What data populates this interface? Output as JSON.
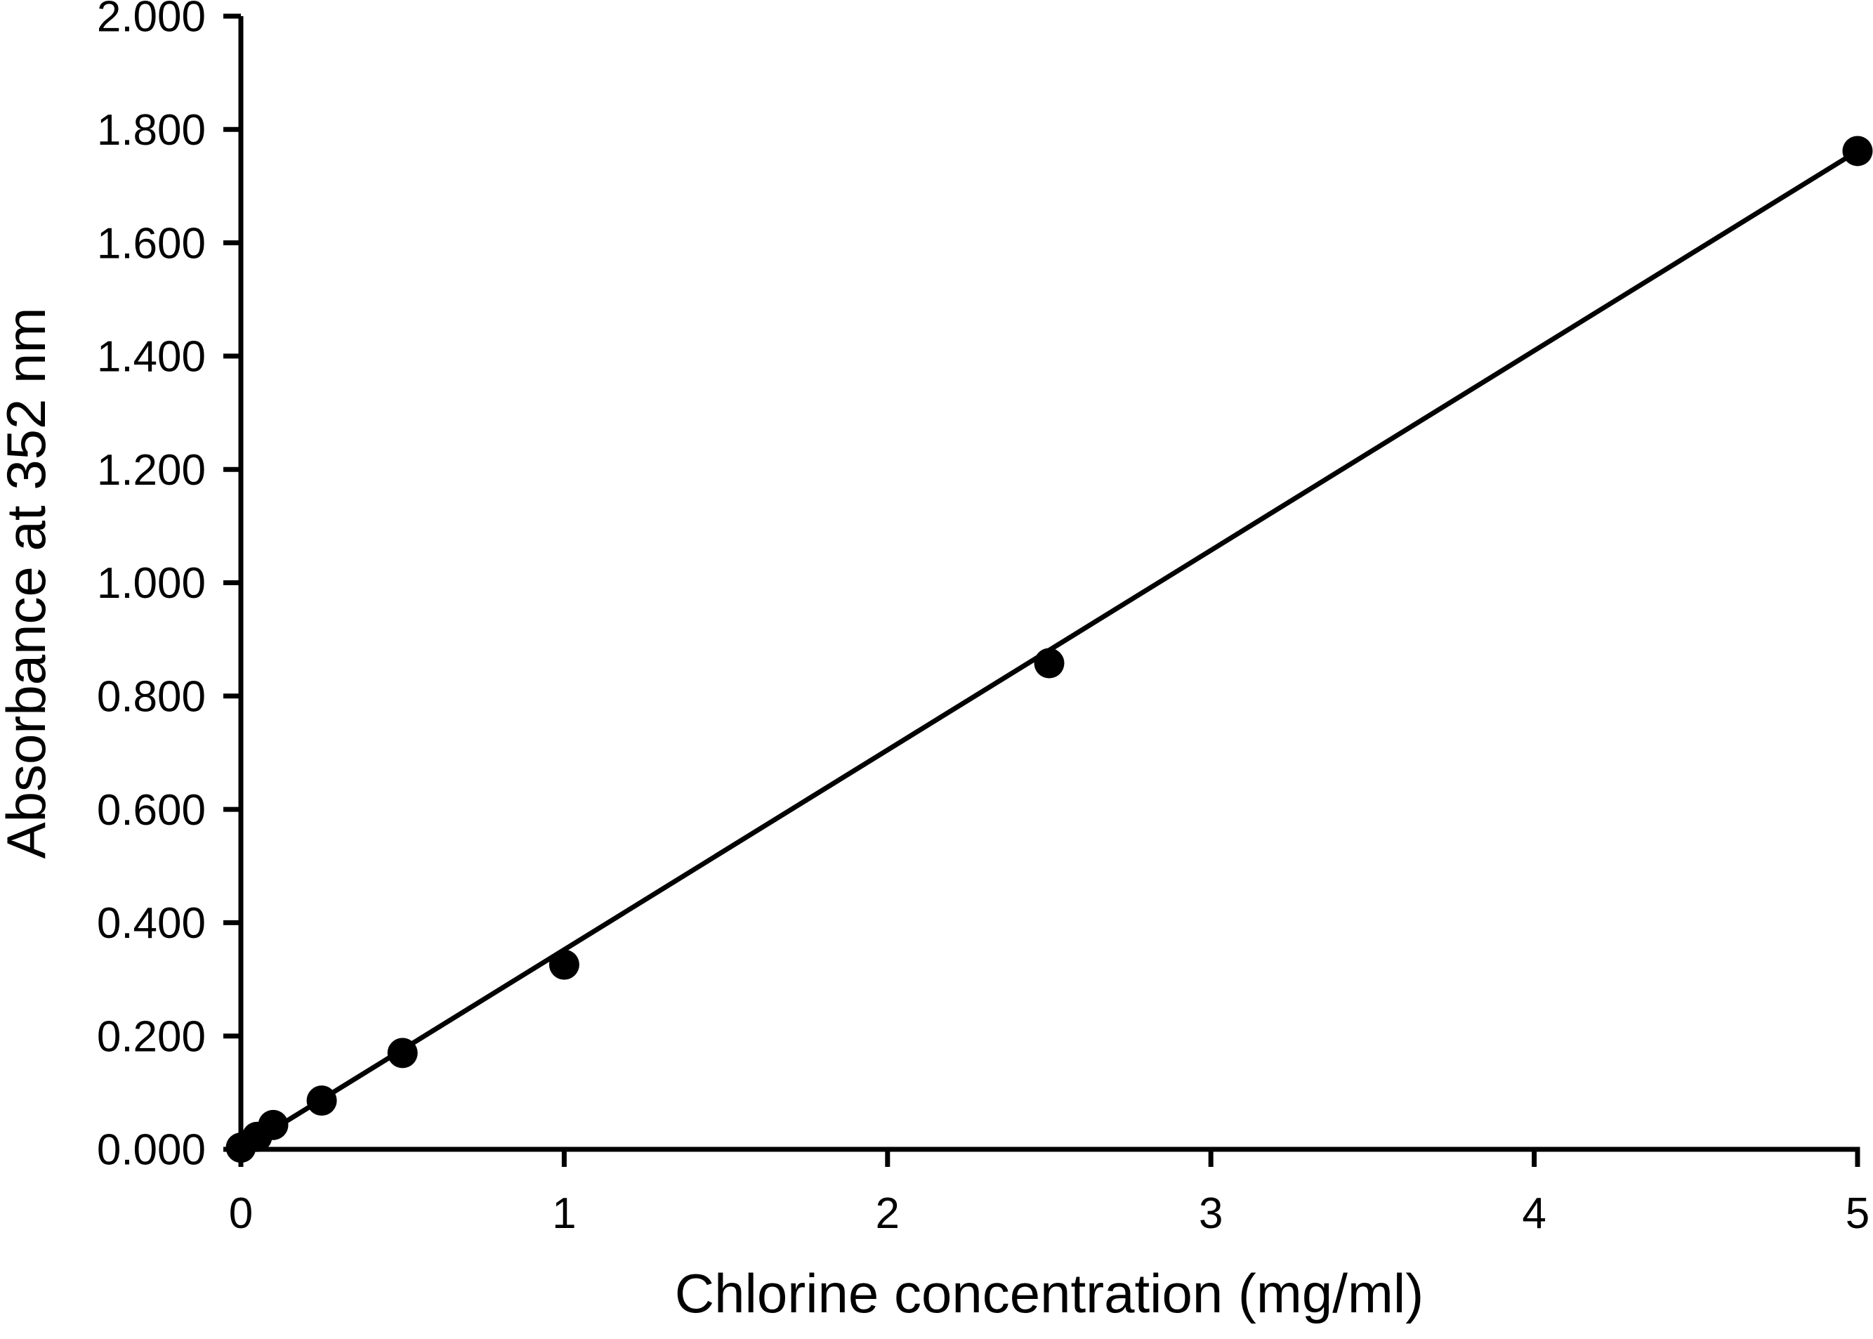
{
  "chart_data": {
    "type": "scatter",
    "title": "",
    "xlabel": "Chlorine concentration (mg/ml)",
    "ylabel": "Absorbance at 352 nm",
    "xlim": [
      0,
      5
    ],
    "ylim": [
      0,
      2
    ],
    "grid": false,
    "legend": "none",
    "background_color": "#ffffff",
    "foreground_color": "#000000",
    "x_ticks": [
      {
        "value": 0,
        "label": "0"
      },
      {
        "value": 1,
        "label": "1"
      },
      {
        "value": 2,
        "label": "2"
      },
      {
        "value": 3,
        "label": "3"
      },
      {
        "value": 4,
        "label": "4"
      },
      {
        "value": 5,
        "label": "5"
      }
    ],
    "y_ticks": [
      {
        "value": 0.0,
        "label": "0.000"
      },
      {
        "value": 0.2,
        "label": "0.200"
      },
      {
        "value": 0.4,
        "label": "0.400"
      },
      {
        "value": 0.6,
        "label": "0.600"
      },
      {
        "value": 0.8,
        "label": "0.800"
      },
      {
        "value": 1.0,
        "label": "1.000"
      },
      {
        "value": 1.2,
        "label": "1.200"
      },
      {
        "value": 1.4,
        "label": "1.400"
      },
      {
        "value": 1.6,
        "label": "1.600"
      },
      {
        "value": 1.8,
        "label": "1.800"
      },
      {
        "value": 2.0,
        "label": "2.000"
      }
    ],
    "series": [
      {
        "name": "absorbance-vs-chlorine-concentration",
        "marker": "filled-circle",
        "color": "#000000",
        "points": [
          {
            "x": 0.0,
            "y": 0.003
          },
          {
            "x": 0.05,
            "y": 0.022
          },
          {
            "x": 0.1,
            "y": 0.043
          },
          {
            "x": 0.25,
            "y": 0.086
          },
          {
            "x": 0.5,
            "y": 0.17
          },
          {
            "x": 1.0,
            "y": 0.326
          },
          {
            "x": 2.5,
            "y": 0.858
          },
          {
            "x": 5.0,
            "y": 1.762
          }
        ],
        "trendline": {
          "x1": 0,
          "y1": 0.0,
          "x2": 5,
          "y2": 1.762,
          "slope": 0.3524,
          "intercept": 0.0,
          "color": "#000000"
        }
      }
    ]
  }
}
